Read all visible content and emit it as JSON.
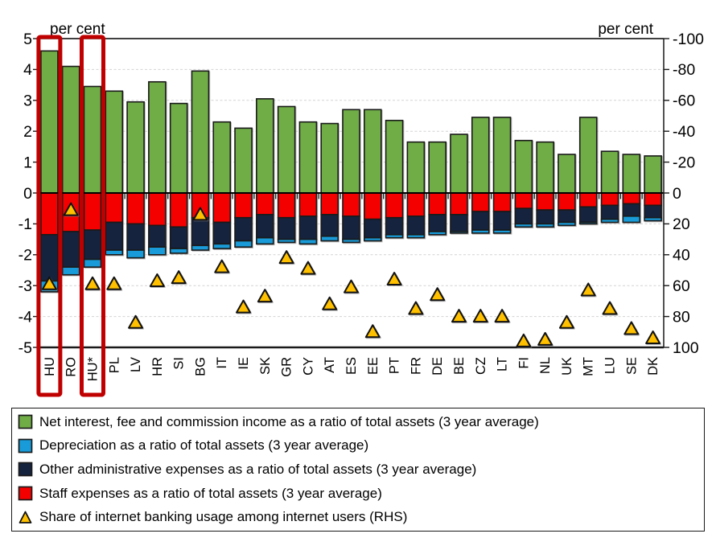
{
  "chart_data": {
    "type": "bar",
    "subtype": "stacked-bars-with-scatter-markers",
    "axis_title_left": "per cent",
    "axis_title_right": "per cent",
    "left_axis": {
      "min": -5,
      "max": 5,
      "ticks": [
        5,
        4,
        3,
        2,
        1,
        0,
        -1,
        -2,
        -3,
        -4,
        -5
      ]
    },
    "right_axis": {
      "min": -100,
      "max": 100,
      "inverted": true,
      "ticks": [
        -100,
        -80,
        -60,
        -40,
        -20,
        0,
        20,
        40,
        60,
        80,
        100
      ]
    },
    "grid": "dashed horizontal at every unit except 0 and edges",
    "legend_position": "bottom-box",
    "categories": [
      "HU",
      "RO",
      "HU*",
      "PL",
      "LV",
      "HR",
      "SI",
      "BG",
      "IT",
      "IE",
      "SK",
      "GR",
      "CY",
      "AT",
      "ES",
      "EE",
      "PT",
      "FR",
      "DE",
      "BE",
      "CZ",
      "LT",
      "FI",
      "NL",
      "UK",
      "MT",
      "LU",
      "SE",
      "DK"
    ],
    "series": [
      {
        "name": "Net interest, fee and commission income as a ratio of total assets (3 year average)",
        "color": "#70AD47",
        "axis": "left",
        "values": [
          4.6,
          4.1,
          3.45,
          3.3,
          2.95,
          3.6,
          2.9,
          3.95,
          2.3,
          2.1,
          3.05,
          2.8,
          2.3,
          2.25,
          2.7,
          2.7,
          2.35,
          1.65,
          1.65,
          1.9,
          2.45,
          2.45,
          1.7,
          1.65,
          1.25,
          2.45,
          1.35,
          1.25,
          1.2
        ]
      },
      {
        "name": "Staff expenses as a ratio of total assets (3 year average)",
        "color": "#F40000",
        "axis": "left",
        "values": [
          -1.35,
          -1.25,
          -1.2,
          -0.95,
          -1.0,
          -1.05,
          -1.1,
          -0.8,
          -0.95,
          -0.8,
          -0.7,
          -0.8,
          -0.75,
          -0.7,
          -0.75,
          -0.85,
          -0.8,
          -0.75,
          -0.7,
          -0.7,
          -0.6,
          -0.6,
          -0.5,
          -0.55,
          -0.55,
          -0.45,
          -0.4,
          -0.35,
          -0.4
        ]
      },
      {
        "name": "Other administrative expenses as a ratio of total assets (3 year average)",
        "color": "#15233E",
        "axis": "left",
        "values": [
          -1.5,
          -1.15,
          -0.95,
          -0.9,
          -0.85,
          -0.7,
          -0.7,
          -0.9,
          -0.7,
          -0.75,
          -0.75,
          -0.7,
          -0.75,
          -0.7,
          -0.75,
          -0.6,
          -0.55,
          -0.6,
          -0.55,
          -0.55,
          -0.6,
          -0.6,
          -0.5,
          -0.45,
          -0.4,
          -0.5,
          -0.45,
          -0.4,
          -0.4
        ]
      },
      {
        "name": "Depreciation as a ratio of total assets (3 year average)",
        "color": "#189BD8",
        "axis": "left",
        "values": [
          -0.35,
          -0.25,
          -0.25,
          -0.15,
          -0.25,
          -0.25,
          -0.15,
          -0.15,
          -0.15,
          -0.2,
          -0.2,
          -0.1,
          -0.15,
          -0.15,
          -0.1,
          -0.1,
          -0.1,
          -0.1,
          -0.1,
          -0.05,
          -0.1,
          -0.1,
          -0.1,
          -0.1,
          -0.1,
          -0.05,
          -0.1,
          -0.2,
          -0.1
        ]
      }
    ],
    "scatter": {
      "name": "Share of internet banking usage among internet users (RHS)",
      "marker": "triangle",
      "color": "#FFC000",
      "axis": "right",
      "values": [
        59,
        11,
        59,
        59,
        84,
        57,
        55,
        14,
        48,
        74,
        67,
        42,
        49,
        72,
        61,
        90,
        56,
        75,
        66,
        80,
        80,
        80,
        96,
        95,
        84,
        63,
        75,
        88,
        94
      ]
    },
    "highlighted_categories": [
      "HU",
      "HU*"
    ],
    "highlight_color": "#C00000"
  },
  "legend": {
    "items": [
      {
        "marker": "square",
        "color": "#70AD47",
        "label": "Net interest, fee and commission income as a ratio of total assets (3 year average)"
      },
      {
        "marker": "square",
        "color": "#189BD8",
        "label": "Depreciation as a ratio of total assets (3 year average)"
      },
      {
        "marker": "square",
        "color": "#15233E",
        "label": "Other administrative expenses as a ratio of total assets (3 year average)"
      },
      {
        "marker": "square",
        "color": "#F40000",
        "label": "Staff expenses as a ratio of total assets (3 year average)"
      },
      {
        "marker": "triangle",
        "color": "#FFC000",
        "label": "Share of internet banking usage among internet users (RHS)"
      }
    ]
  }
}
